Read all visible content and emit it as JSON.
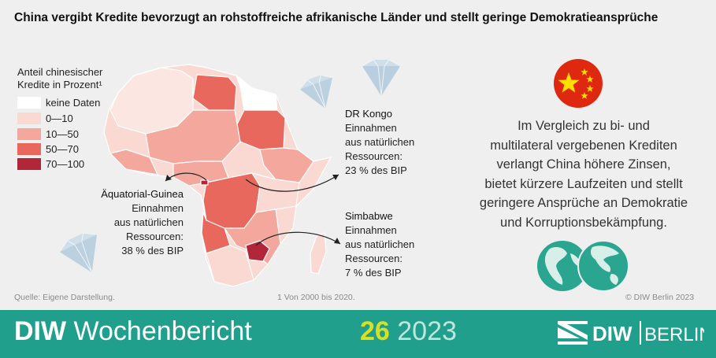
{
  "title": "China vergibt Kredite bevorzugt an rohstoffreiche afrikanische Länder und stellt geringe Demokratieansprüche",
  "legend": {
    "title_line1": "Anteil chinesischer",
    "title_line2": "Kredite",
    "title_unit": " in Prozent¹",
    "items": [
      {
        "label": "keine Daten",
        "color": "#ffffff"
      },
      {
        "label": "0—10",
        "color": "#fbd9d3"
      },
      {
        "label": "10—50",
        "color": "#f4a79c"
      },
      {
        "label": "50—70",
        "color": "#e8685e"
      },
      {
        "label": "70—100",
        "color": "#b2263a"
      }
    ]
  },
  "callouts": {
    "drk": {
      "head": "DR Kongo",
      "l1": "Einnahmen",
      "l2": "aus natürlichen",
      "l3": "Ressourcen:",
      "l4": "23 % des BIP"
    },
    "eq": {
      "head": "Äquatorial-Guinea",
      "l1": "Einnahmen",
      "l2": "aus natürlichen",
      "l3": "Ressourcen:",
      "l4": "38 % des BIP"
    },
    "zim": {
      "head": "Simbabwe",
      "l1": "Einnahmen",
      "l2": "aus natürlichen",
      "l3": "Ressourcen:",
      "l4": "7 % des BIP"
    }
  },
  "right_text": {
    "l1": "Im Vergleich zu bi- und",
    "l2": "multilateral vergebenen Krediten",
    "l3": "verlangt China höhere Zinsen,",
    "l4": "bietet kürzere Laufzeiten und stellt",
    "l5": "geringere Ansprüche an Demokratie",
    "l6": "und Korruptionsbekämpfung."
  },
  "footer": {
    "source": "Quelle: Eigene Darstellung.",
    "footnote": "1  Von 2000 bis 2020.",
    "copyright": "© DIW Berlin 2023"
  },
  "bar": {
    "brand_bold": "DIW",
    "brand_rest": " Wochenbericht",
    "issue": "26",
    "year": " 2023",
    "logo_diw": "DIW",
    "logo_berlin": "BERLIN"
  },
  "colors": {
    "bar": "#1f9f8c",
    "china_red": "#de2910",
    "star_yellow": "#ffde00",
    "globe": "#2aa58f",
    "diamond": "#cfdfea"
  },
  "icons": [
    "china-flag-icon",
    "globe-icon",
    "diamond-icon",
    "diw-logo-icon"
  ]
}
